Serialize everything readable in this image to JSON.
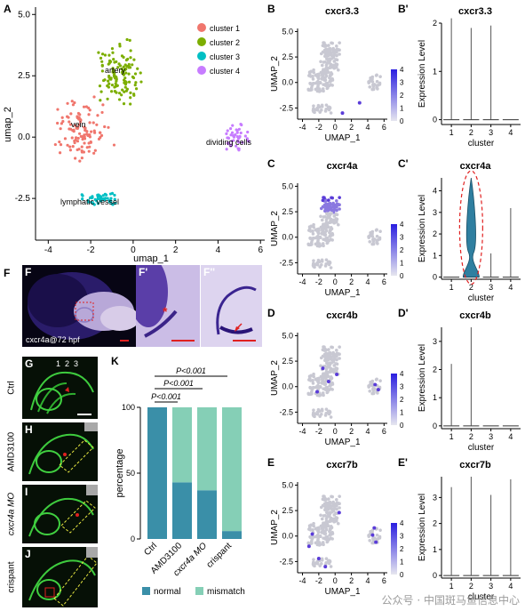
{
  "panel_letters": {
    "A": "A",
    "B": "B",
    "B_prime": "B'",
    "C": "C",
    "C_prime": "C'",
    "D": "D",
    "D_prime": "D'",
    "E": "E",
    "E_prime": "E'",
    "F": "F",
    "F_prime": "F'",
    "F_dprime": "F''",
    "G": "G",
    "H": "H",
    "I": "I",
    "J": "J",
    "K": "K"
  },
  "panelA": {
    "xlabel": "umap_1",
    "ylabel": "umap_2",
    "xticks": [
      "-4",
      "-2",
      "0",
      "2",
      "4",
      "6"
    ],
    "yticks": [
      "5.0",
      "2.5",
      "0.0",
      "-2.5"
    ],
    "annotations": [
      "artery",
      "vein",
      "lymphatic vessel",
      "dividing cells"
    ],
    "legend": [
      "cluster 1",
      "cluster 2",
      "cluster 3",
      "cluster 4"
    ],
    "colors": [
      "#f0766d",
      "#7cae00",
      "#00bfc4",
      "#c77cff"
    ]
  },
  "feature_plots": {
    "xlabel": "UMAP_1",
    "ylabel": "UMAP_2",
    "xticks": [
      "-4",
      "-2",
      "0",
      "2",
      "4",
      "6"
    ],
    "yticks": [
      "5.0",
      "2.5",
      "0.0",
      "-2.5"
    ],
    "colorbar_ticks": [
      "4",
      "3",
      "2",
      "1",
      "0"
    ],
    "titles": [
      "cxcr3.3",
      "cxcr4a",
      "cxcr4b",
      "cxcr7b"
    ]
  },
  "violin_plots": {
    "xlabel": "cluster",
    "ylabel": "Expression Level",
    "xticks": [
      "1",
      "2",
      "3",
      "4"
    ],
    "titles": [
      "cxcr3.3",
      "cxcr4a",
      "cxcr4b",
      "cxcr7b"
    ],
    "yticks": [
      [
        "0",
        "1",
        "2"
      ],
      [
        "0",
        "1",
        "2",
        "3",
        "4"
      ],
      [
        "0",
        "1",
        "2",
        "3"
      ],
      [
        "0",
        "1",
        "2",
        "3"
      ]
    ]
  },
  "panelF": {
    "caption": "cxcr4a@72 hpf",
    "asterisk": "*"
  },
  "panelG_numbers": [
    "1",
    "2",
    "3"
  ],
  "side_labels": [
    "Ctrl",
    "AMD3100",
    "cxcr4a MO",
    "crispant"
  ],
  "chart_data": {
    "type": "bar",
    "stacked": true,
    "categories": [
      "Ctrl",
      "AMD3100",
      "cxcr4a MO",
      "crispant"
    ],
    "series": [
      {
        "name": "normal",
        "values": [
          100,
          43,
          37,
          6
        ],
        "color": "#3a8fa8"
      },
      {
        "name": "mismatch",
        "values": [
          0,
          57,
          63,
          94
        ],
        "color": "#85cfb6"
      }
    ],
    "ylabel": "percentage",
    "yticks": [
      "0",
      "50",
      "100"
    ],
    "ylim": [
      0,
      100
    ],
    "legend_position": "bottom",
    "significance": [
      "P<0.001",
      "P<0.001",
      "P<0.001"
    ]
  },
  "watermark": "公众号 · 中国斑马鱼信息中心"
}
